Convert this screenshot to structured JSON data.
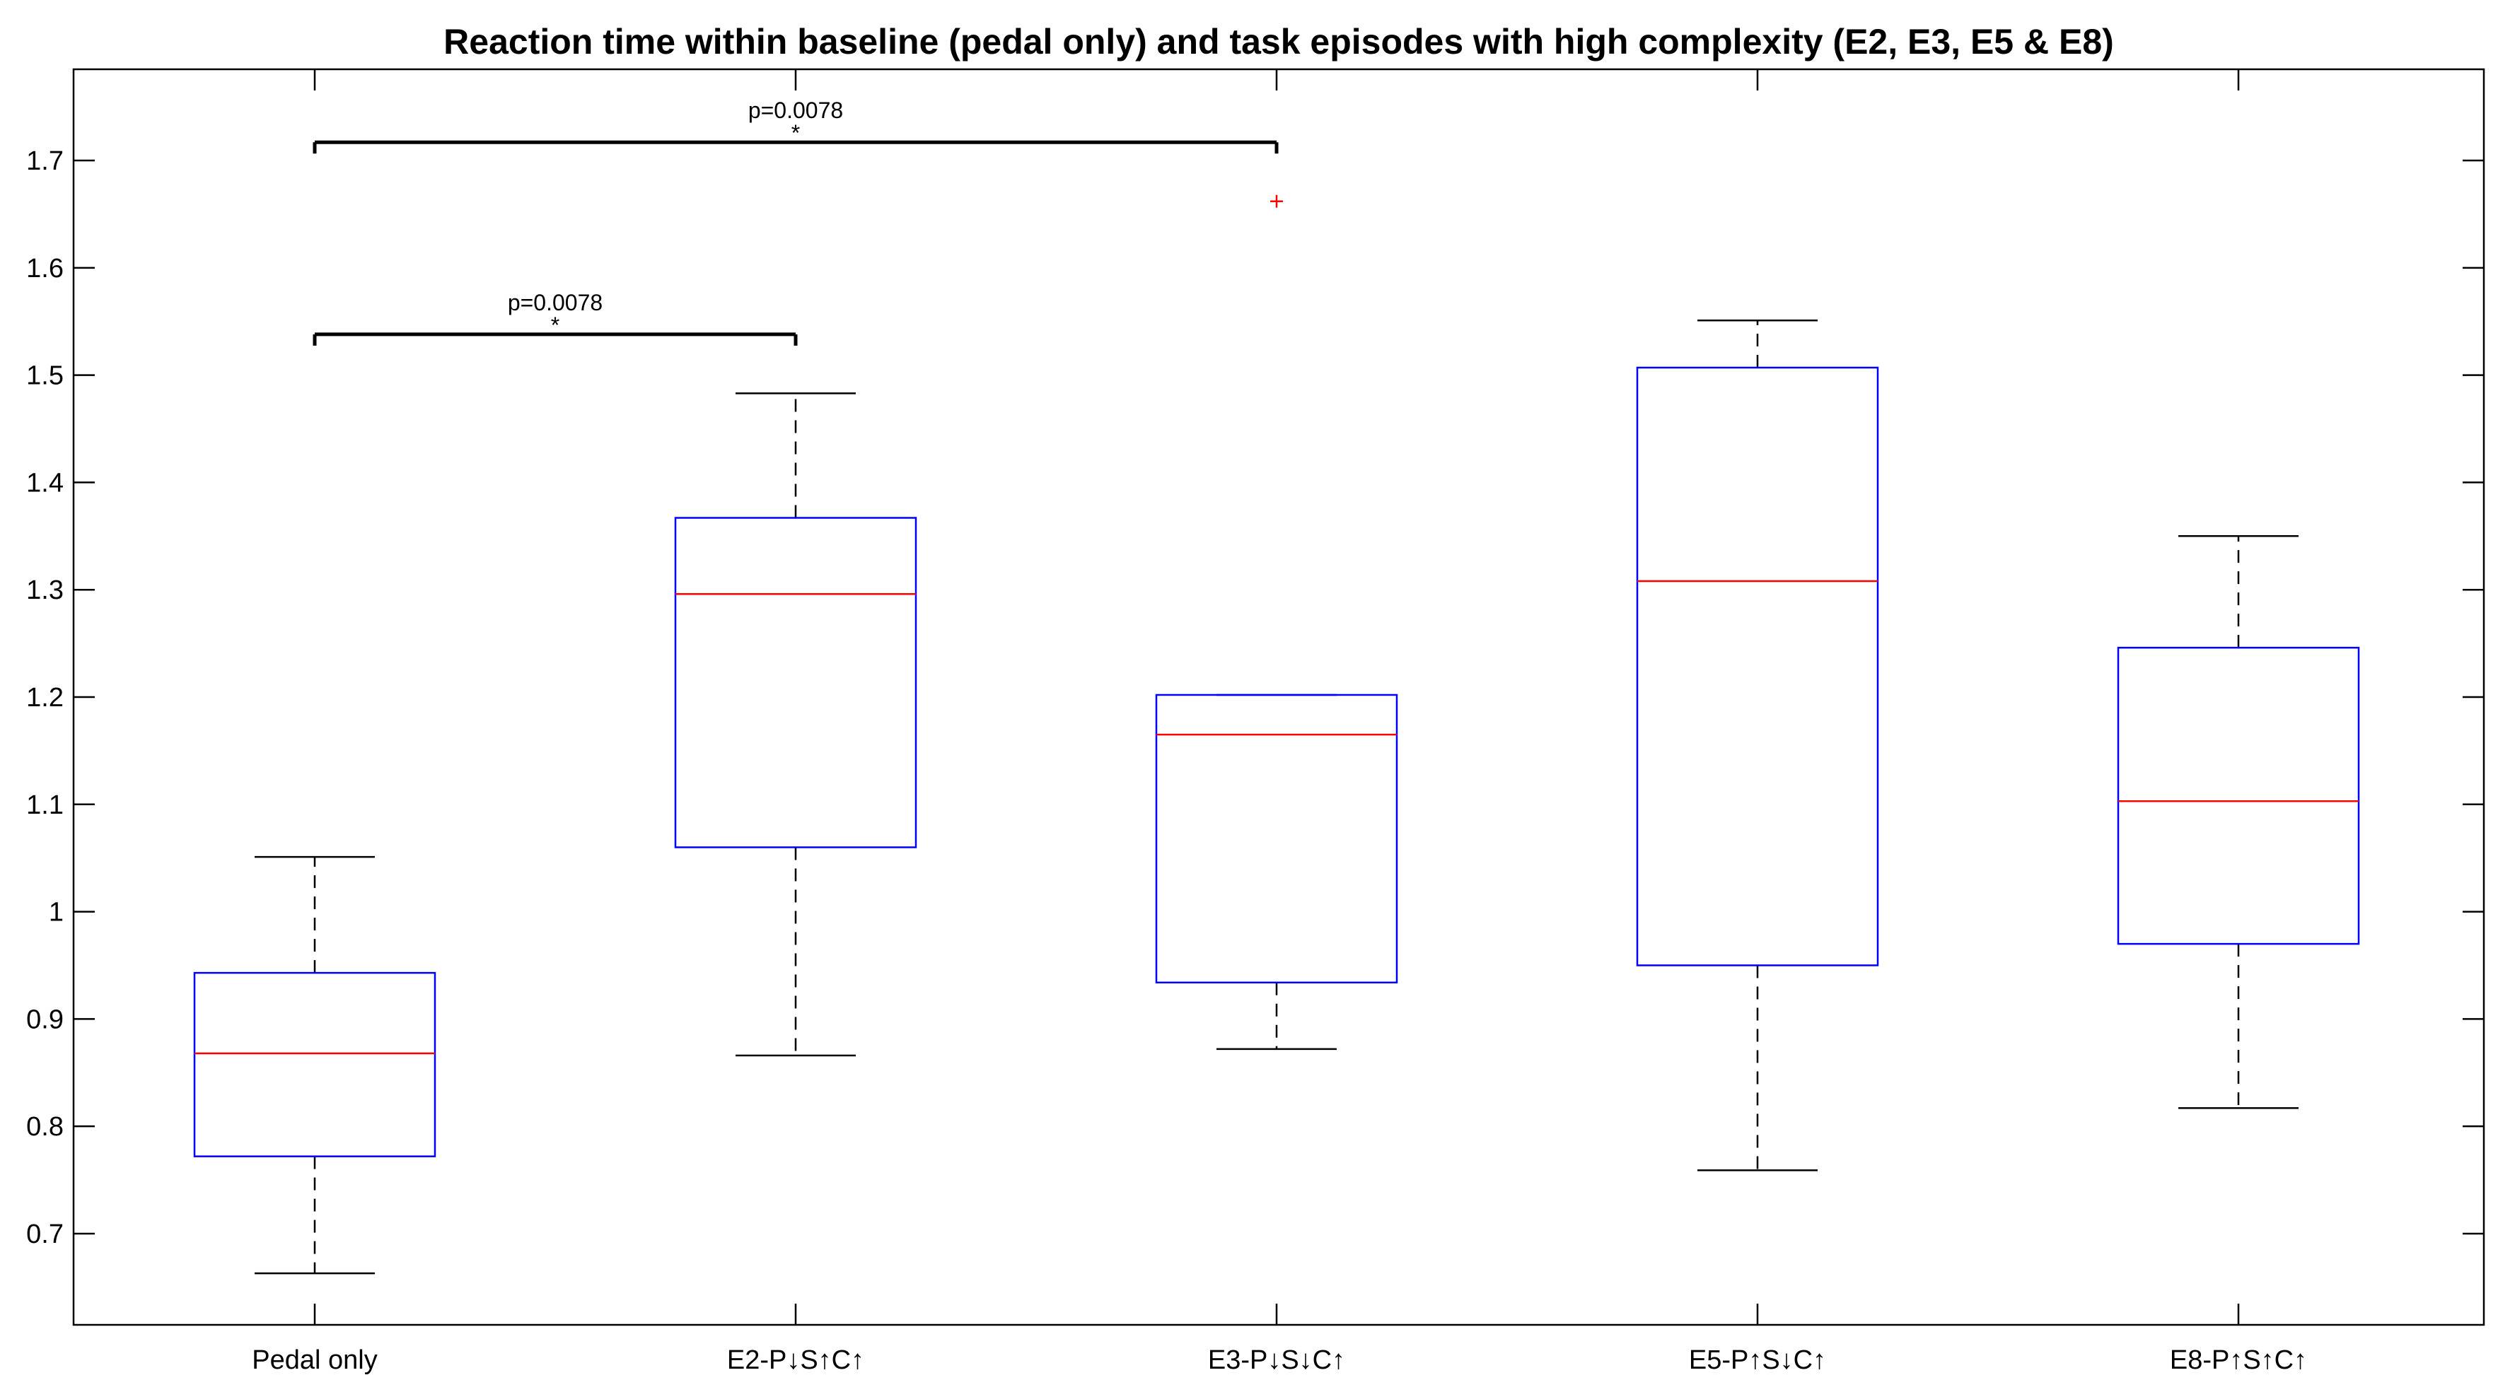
{
  "chart_data": {
    "type": "boxplot",
    "title": "Reaction time within baseline (pedal only) and task episodes with high complexity (E2, E3, E5 & E8)",
    "xlabel": "",
    "ylabel": "",
    "ylim": [
      0.615,
      1.785
    ],
    "yticks": [
      0.7,
      0.8,
      0.9,
      1,
      1.1,
      1.2,
      1.3,
      1.4,
      1.5,
      1.6,
      1.7
    ],
    "ytick_labels": [
      "0.7",
      "0.8",
      "0.9",
      "1",
      "1.1",
      "1.2",
      "1.3",
      "1.4",
      "1.5",
      "1.6",
      "1.7"
    ],
    "grid": false,
    "categories": [
      "Pedal only",
      "E2-P↓S↑C↑",
      "E3-P↓S↓C↑",
      "E5-P↑S↓C↑",
      "E8-P↑S↑C↑"
    ],
    "boxes": [
      {
        "category": "Pedal only",
        "whisker_low": 0.663,
        "q1": 0.772,
        "median": 0.868,
        "q3": 0.943,
        "whisker_high": 1.051,
        "outliers": []
      },
      {
        "category": "E2-P↓S↑C↑",
        "whisker_low": 0.866,
        "q1": 1.06,
        "median": 1.296,
        "q3": 1.367,
        "whisker_high": 1.483,
        "outliers": []
      },
      {
        "category": "E3-P↓S↓C↑",
        "whisker_low": 0.872,
        "q1": 0.934,
        "median": 1.165,
        "q3": 1.202,
        "whisker_high": 1.202,
        "outliers": [
          1.662
        ]
      },
      {
        "category": "E5-P↑S↓C↑",
        "whisker_low": 0.759,
        "q1": 0.95,
        "median": 1.308,
        "q3": 1.507,
        "whisker_high": 1.551,
        "outliers": []
      },
      {
        "category": "E8-P↑S↑C↑",
        "whisker_low": 0.817,
        "q1": 0.97,
        "median": 1.103,
        "q3": 1.246,
        "whisker_high": 1.35,
        "outliers": []
      }
    ],
    "significance": [
      {
        "from": "Pedal only",
        "to": "E2-P↓S↑C↑",
        "y": 1.538,
        "label": "p=0.0078",
        "marker": "*"
      },
      {
        "from": "Pedal only",
        "to": "E3-P↓S↓C↑",
        "y": 1.717,
        "label": "p=0.0078",
        "marker": "*"
      }
    ],
    "colors": {
      "box": "#0000ff",
      "median": "#ff0000",
      "whisker": "#000000",
      "outlier": "#ff0000",
      "axes": "#000000",
      "bracket": "#000000"
    }
  }
}
